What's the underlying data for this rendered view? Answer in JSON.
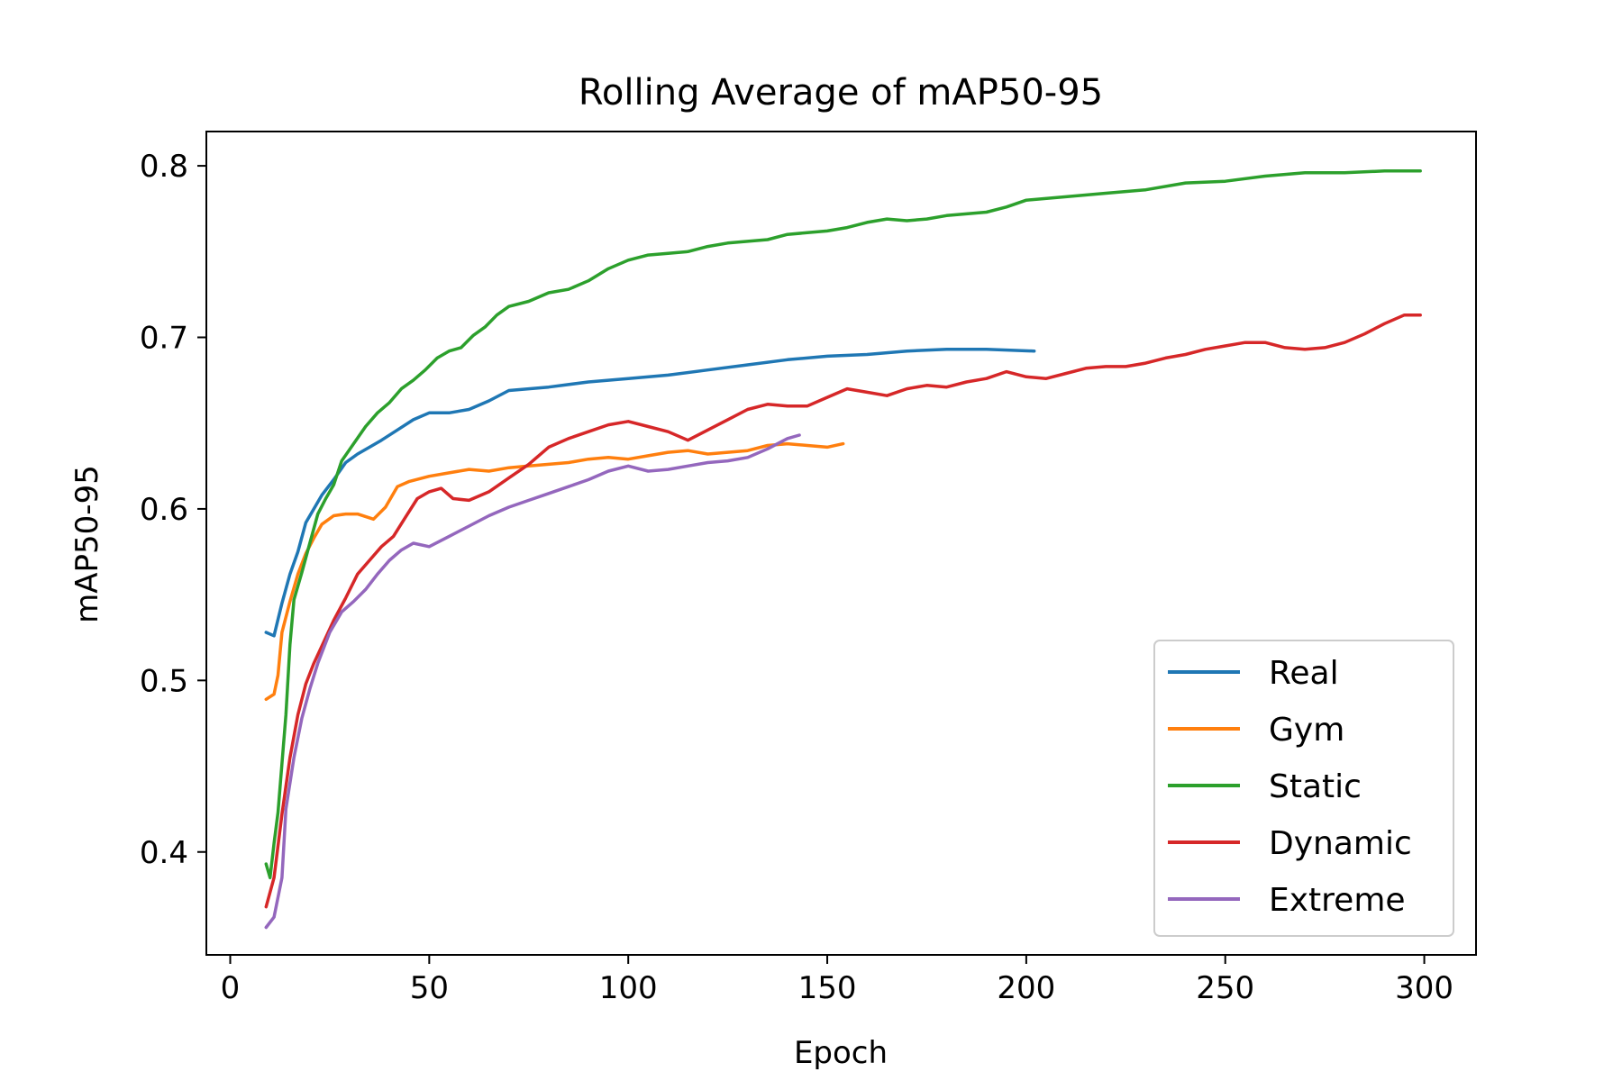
{
  "chart_data": {
    "type": "line",
    "title": "Rolling Average of mAP50-95",
    "xlabel": "Epoch",
    "ylabel": "mAP50-95",
    "xlim": [
      -6,
      313
    ],
    "ylim": [
      0.34,
      0.82
    ],
    "xticks": [
      0,
      50,
      100,
      150,
      200,
      250,
      300
    ],
    "yticks": [
      0.4,
      0.5,
      0.6,
      0.7,
      0.8
    ],
    "grid": false,
    "legend_position": "lower-right",
    "series": [
      {
        "name": "Real",
        "color": "#1f77b4",
        "points": [
          [
            9,
            0.528
          ],
          [
            11,
            0.526
          ],
          [
            13,
            0.545
          ],
          [
            15,
            0.562
          ],
          [
            17,
            0.575
          ],
          [
            19,
            0.592
          ],
          [
            21,
            0.6
          ],
          [
            23,
            0.608
          ],
          [
            26,
            0.617
          ],
          [
            29,
            0.627
          ],
          [
            32,
            0.632
          ],
          [
            35,
            0.636
          ],
          [
            38,
            0.64
          ],
          [
            42,
            0.646
          ],
          [
            46,
            0.652
          ],
          [
            50,
            0.656
          ],
          [
            55,
            0.656
          ],
          [
            60,
            0.658
          ],
          [
            65,
            0.663
          ],
          [
            70,
            0.669
          ],
          [
            75,
            0.67
          ],
          [
            80,
            0.671
          ],
          [
            90,
            0.674
          ],
          [
            100,
            0.676
          ],
          [
            110,
            0.678
          ],
          [
            120,
            0.681
          ],
          [
            130,
            0.684
          ],
          [
            140,
            0.687
          ],
          [
            150,
            0.689
          ],
          [
            160,
            0.69
          ],
          [
            170,
            0.692
          ],
          [
            180,
            0.693
          ],
          [
            190,
            0.693
          ],
          [
            202,
            0.692
          ]
        ]
      },
      {
        "name": "Gym",
        "color": "#ff7f0e",
        "points": [
          [
            9,
            0.489
          ],
          [
            11,
            0.492
          ],
          [
            12,
            0.503
          ],
          [
            13,
            0.528
          ],
          [
            15,
            0.546
          ],
          [
            17,
            0.562
          ],
          [
            19,
            0.574
          ],
          [
            21,
            0.583
          ],
          [
            23,
            0.591
          ],
          [
            26,
            0.596
          ],
          [
            29,
            0.597
          ],
          [
            32,
            0.597
          ],
          [
            36,
            0.594
          ],
          [
            39,
            0.601
          ],
          [
            42,
            0.613
          ],
          [
            45,
            0.616
          ],
          [
            50,
            0.619
          ],
          [
            55,
            0.621
          ],
          [
            60,
            0.623
          ],
          [
            65,
            0.622
          ],
          [
            70,
            0.624
          ],
          [
            75,
            0.625
          ],
          [
            80,
            0.626
          ],
          [
            85,
            0.627
          ],
          [
            90,
            0.629
          ],
          [
            95,
            0.63
          ],
          [
            100,
            0.629
          ],
          [
            105,
            0.631
          ],
          [
            110,
            0.633
          ],
          [
            115,
            0.634
          ],
          [
            120,
            0.632
          ],
          [
            125,
            0.633
          ],
          [
            130,
            0.634
          ],
          [
            135,
            0.637
          ],
          [
            140,
            0.638
          ],
          [
            145,
            0.637
          ],
          [
            150,
            0.636
          ],
          [
            154,
            0.638
          ]
        ]
      },
      {
        "name": "Static",
        "color": "#2ca02c",
        "points": [
          [
            9,
            0.393
          ],
          [
            10,
            0.385
          ],
          [
            11,
            0.405
          ],
          [
            12,
            0.423
          ],
          [
            14,
            0.48
          ],
          [
            15,
            0.521
          ],
          [
            16,
            0.547
          ],
          [
            18,
            0.563
          ],
          [
            20,
            0.58
          ],
          [
            22,
            0.597
          ],
          [
            24,
            0.606
          ],
          [
            26,
            0.614
          ],
          [
            28,
            0.628
          ],
          [
            31,
            0.638
          ],
          [
            34,
            0.648
          ],
          [
            37,
            0.656
          ],
          [
            40,
            0.662
          ],
          [
            43,
            0.67
          ],
          [
            46,
            0.675
          ],
          [
            49,
            0.681
          ],
          [
            52,
            0.688
          ],
          [
            55,
            0.692
          ],
          [
            58,
            0.694
          ],
          [
            61,
            0.701
          ],
          [
            64,
            0.706
          ],
          [
            67,
            0.713
          ],
          [
            70,
            0.718
          ],
          [
            75,
            0.721
          ],
          [
            80,
            0.726
          ],
          [
            85,
            0.728
          ],
          [
            90,
            0.733
          ],
          [
            95,
            0.74
          ],
          [
            100,
            0.745
          ],
          [
            105,
            0.748
          ],
          [
            110,
            0.749
          ],
          [
            115,
            0.75
          ],
          [
            120,
            0.753
          ],
          [
            125,
            0.755
          ],
          [
            130,
            0.756
          ],
          [
            135,
            0.757
          ],
          [
            140,
            0.76
          ],
          [
            145,
            0.761
          ],
          [
            150,
            0.762
          ],
          [
            155,
            0.764
          ],
          [
            160,
            0.767
          ],
          [
            165,
            0.769
          ],
          [
            170,
            0.768
          ],
          [
            175,
            0.769
          ],
          [
            180,
            0.771
          ],
          [
            185,
            0.772
          ],
          [
            190,
            0.773
          ],
          [
            195,
            0.776
          ],
          [
            200,
            0.78
          ],
          [
            210,
            0.782
          ],
          [
            220,
            0.784
          ],
          [
            230,
            0.786
          ],
          [
            240,
            0.79
          ],
          [
            250,
            0.791
          ],
          [
            260,
            0.794
          ],
          [
            270,
            0.796
          ],
          [
            280,
            0.796
          ],
          [
            290,
            0.797
          ],
          [
            299,
            0.797
          ]
        ]
      },
      {
        "name": "Dynamic",
        "color": "#d62728",
        "points": [
          [
            9,
            0.368
          ],
          [
            11,
            0.385
          ],
          [
            13,
            0.422
          ],
          [
            15,
            0.455
          ],
          [
            17,
            0.48
          ],
          [
            19,
            0.498
          ],
          [
            21,
            0.51
          ],
          [
            23,
            0.52
          ],
          [
            26,
            0.535
          ],
          [
            29,
            0.548
          ],
          [
            32,
            0.562
          ],
          [
            35,
            0.57
          ],
          [
            38,
            0.578
          ],
          [
            41,
            0.584
          ],
          [
            44,
            0.595
          ],
          [
            47,
            0.606
          ],
          [
            50,
            0.61
          ],
          [
            53,
            0.612
          ],
          [
            56,
            0.606
          ],
          [
            60,
            0.605
          ],
          [
            65,
            0.61
          ],
          [
            70,
            0.618
          ],
          [
            75,
            0.626
          ],
          [
            80,
            0.636
          ],
          [
            85,
            0.641
          ],
          [
            90,
            0.645
          ],
          [
            95,
            0.649
          ],
          [
            100,
            0.651
          ],
          [
            105,
            0.648
          ],
          [
            110,
            0.645
          ],
          [
            115,
            0.64
          ],
          [
            120,
            0.646
          ],
          [
            125,
            0.652
          ],
          [
            130,
            0.658
          ],
          [
            135,
            0.661
          ],
          [
            140,
            0.66
          ],
          [
            145,
            0.66
          ],
          [
            150,
            0.665
          ],
          [
            155,
            0.67
          ],
          [
            160,
            0.668
          ],
          [
            165,
            0.666
          ],
          [
            170,
            0.67
          ],
          [
            175,
            0.672
          ],
          [
            180,
            0.671
          ],
          [
            185,
            0.674
          ],
          [
            190,
            0.676
          ],
          [
            195,
            0.68
          ],
          [
            200,
            0.677
          ],
          [
            205,
            0.676
          ],
          [
            210,
            0.679
          ],
          [
            215,
            0.682
          ],
          [
            220,
            0.683
          ],
          [
            225,
            0.683
          ],
          [
            230,
            0.685
          ],
          [
            235,
            0.688
          ],
          [
            240,
            0.69
          ],
          [
            245,
            0.693
          ],
          [
            250,
            0.695
          ],
          [
            255,
            0.697
          ],
          [
            260,
            0.697
          ],
          [
            265,
            0.694
          ],
          [
            270,
            0.693
          ],
          [
            275,
            0.694
          ],
          [
            280,
            0.697
          ],
          [
            285,
            0.702
          ],
          [
            290,
            0.708
          ],
          [
            295,
            0.713
          ],
          [
            299,
            0.713
          ]
        ]
      },
      {
        "name": "Extreme",
        "color": "#9467bd",
        "points": [
          [
            9,
            0.356
          ],
          [
            11,
            0.362
          ],
          [
            13,
            0.385
          ],
          [
            14,
            0.425
          ],
          [
            16,
            0.455
          ],
          [
            18,
            0.478
          ],
          [
            20,
            0.495
          ],
          [
            22,
            0.51
          ],
          [
            25,
            0.528
          ],
          [
            28,
            0.54
          ],
          [
            31,
            0.546
          ],
          [
            34,
            0.553
          ],
          [
            37,
            0.562
          ],
          [
            40,
            0.57
          ],
          [
            43,
            0.576
          ],
          [
            46,
            0.58
          ],
          [
            50,
            0.578
          ],
          [
            55,
            0.584
          ],
          [
            60,
            0.59
          ],
          [
            65,
            0.596
          ],
          [
            70,
            0.601
          ],
          [
            75,
            0.605
          ],
          [
            80,
            0.609
          ],
          [
            85,
            0.613
          ],
          [
            90,
            0.617
          ],
          [
            95,
            0.622
          ],
          [
            100,
            0.625
          ],
          [
            105,
            0.622
          ],
          [
            110,
            0.623
          ],
          [
            115,
            0.625
          ],
          [
            120,
            0.627
          ],
          [
            125,
            0.628
          ],
          [
            130,
            0.63
          ],
          [
            135,
            0.635
          ],
          [
            140,
            0.641
          ],
          [
            143,
            0.643
          ]
        ]
      }
    ]
  }
}
